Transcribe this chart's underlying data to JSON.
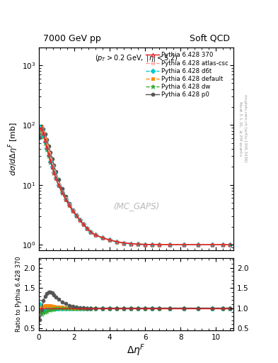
{
  "title_left": "7000 GeV pp",
  "title_right": "Soft QCD",
  "watermark": "(MC_GAPS)",
  "ylim_main": [
    0.8,
    2000
  ],
  "ylim_ratio": [
    0.45,
    2.25
  ],
  "series": [
    {
      "label": "Pythia 6.428 370",
      "color": "#e31a1c",
      "marker": "^",
      "ls": "-",
      "lw": 1.0,
      "ms": 3.5,
      "mfc": "none"
    },
    {
      "label": "Pythia 6.428 atlas-csc",
      "color": "#ff9999",
      "marker": "o",
      "ls": "--",
      "lw": 1.0,
      "ms": 3.5,
      "mfc": "none"
    },
    {
      "label": "Pythia 6.428 d6t",
      "color": "#00cccc",
      "marker": "D",
      "ls": "--",
      "lw": 1.0,
      "ms": 3.5,
      "mfc": "#00cccc"
    },
    {
      "label": "Pythia 6.428 default",
      "color": "#ff8800",
      "marker": "s",
      "ls": "--",
      "lw": 1.0,
      "ms": 3.5,
      "mfc": "#ff8800"
    },
    {
      "label": "Pythia 6.428 dw",
      "color": "#33aa33",
      "marker": "*",
      "ls": "--",
      "lw": 1.0,
      "ms": 4.5,
      "mfc": "#33aa33"
    },
    {
      "label": "Pythia 6.428 p0",
      "color": "#555555",
      "marker": "o",
      "ls": "-",
      "lw": 1.0,
      "ms": 3.5,
      "mfc": "#555555"
    }
  ],
  "xvals": [
    0.05,
    0.15,
    0.25,
    0.35,
    0.45,
    0.55,
    0.65,
    0.75,
    0.85,
    0.95,
    1.1,
    1.3,
    1.5,
    1.7,
    1.9,
    2.1,
    2.3,
    2.5,
    2.7,
    2.9,
    3.2,
    3.6,
    4.0,
    4.4,
    4.8,
    5.2,
    5.6,
    6.0,
    6.4,
    6.8,
    7.4,
    8.2,
    9.0,
    9.8,
    10.4,
    10.8
  ],
  "main_y_ref": [
    85,
    90,
    72,
    55,
    42,
    32,
    25,
    20,
    16,
    13,
    10,
    7.5,
    5.8,
    4.6,
    3.7,
    3.1,
    2.6,
    2.2,
    1.9,
    1.65,
    1.45,
    1.3,
    1.2,
    1.12,
    1.07,
    1.04,
    1.02,
    1.01,
    1.005,
    1.003,
    1.002,
    1.001,
    1.001,
    1.0,
    1.0,
    1.0
  ],
  "ratio_p0": [
    0.72,
    0.95,
    1.18,
    1.3,
    1.37,
    1.4,
    1.4,
    1.38,
    1.33,
    1.27,
    1.22,
    1.16,
    1.11,
    1.07,
    1.04,
    1.02,
    1.01,
    1.005,
    1.0,
    1.0,
    1.0,
    1.0,
    1.0,
    1.0,
    1.0,
    1.0,
    1.0,
    1.0,
    1.0,
    1.0,
    1.0,
    1.0,
    1.0,
    1.0,
    1.0,
    1.0
  ],
  "ratio_atlas": [
    0.96,
    0.98,
    1.01,
    1.03,
    1.04,
    1.05,
    1.05,
    1.04,
    1.03,
    1.02,
    1.02,
    1.01,
    1.01,
    1.01,
    1.005,
    1.0,
    1.0,
    1.0,
    1.0,
    1.0,
    1.0,
    1.0,
    1.0,
    1.0,
    1.0,
    1.0,
    1.0,
    1.0,
    1.0,
    1.0,
    1.0,
    1.0,
    1.0,
    1.0,
    1.0,
    1.0
  ],
  "ratio_d6t": [
    1.1,
    0.92,
    0.94,
    0.96,
    0.97,
    0.98,
    0.99,
    1.0,
    1.0,
    1.0,
    1.0,
    1.0,
    1.0,
    1.0,
    1.0,
    1.0,
    1.0,
    1.0,
    1.0,
    1.0,
    1.0,
    1.0,
    1.0,
    1.0,
    1.0,
    1.0,
    1.0,
    1.0,
    1.0,
    1.0,
    1.0,
    1.0,
    1.0,
    1.0,
    1.0,
    1.0
  ],
  "ratio_default": [
    0.98,
    1.03,
    1.05,
    1.06,
    1.07,
    1.07,
    1.06,
    1.05,
    1.04,
    1.03,
    1.02,
    1.02,
    1.01,
    1.01,
    1.0,
    1.0,
    1.0,
    1.0,
    1.0,
    1.0,
    1.0,
    1.0,
    1.0,
    1.0,
    1.0,
    1.0,
    1.0,
    1.0,
    1.0,
    1.0,
    1.0,
    1.0,
    1.0,
    1.0,
    1.0,
    1.0
  ],
  "ratio_dw": [
    0.9,
    0.85,
    0.88,
    0.91,
    0.93,
    0.95,
    0.96,
    0.97,
    0.98,
    0.99,
    0.99,
    0.99,
    0.99,
    1.0,
    1.0,
    1.0,
    1.0,
    1.0,
    1.0,
    1.0,
    1.0,
    1.0,
    1.0,
    1.0,
    1.0,
    1.0,
    1.0,
    1.0,
    1.0,
    1.0,
    1.0,
    1.0,
    1.0,
    1.0,
    1.0,
    1.0
  ]
}
